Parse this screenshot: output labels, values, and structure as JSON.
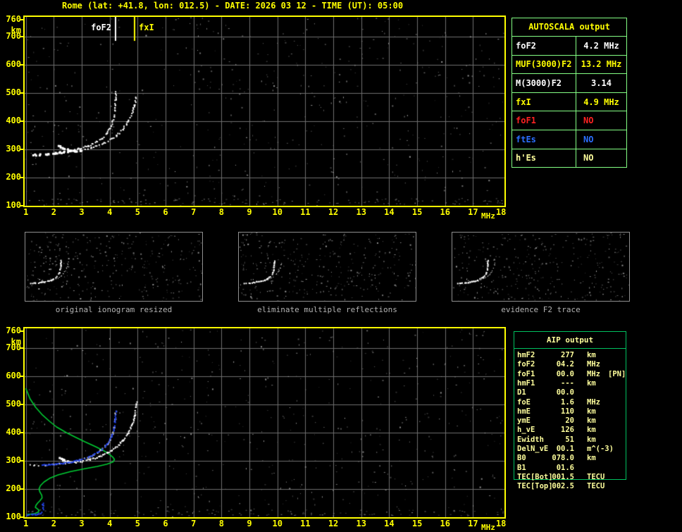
{
  "title": "Rome (lat: +41.8, lon: 012.5) - DATE: 2026 03 12 - TIME (UT): 05:00",
  "colors": {
    "accent_yellow": "#ffff00",
    "pale_yellow": "#ffff9c",
    "white": "#ffffff",
    "red": "#ff2222",
    "blue": "#2b6fff",
    "trace_blue": "#2244ee",
    "profile_green": "#00cc33",
    "table_border_light": "#84ff84",
    "aip_border_green": "#00c060",
    "grid_gray": "#6f6f6f",
    "noise_gray": "#9a9a9a",
    "panel_border": "#8f8f8f",
    "caption_gray": "#b2b2b2"
  },
  "autoscala": {
    "header": "AUTOSCALA output",
    "rows": [
      {
        "label": "foF2",
        "value": "4.2 MHz",
        "color": "#ffffff"
      },
      {
        "label": "MUF(3000)F2",
        "value": "13.2 MHz",
        "color": "#ffff00"
      },
      {
        "label": "M(3000)F2",
        "value": "3.14",
        "color": "#ffffff"
      },
      {
        "label": "fxI",
        "value": "4.9 MHz",
        "color": "#ffff00"
      },
      {
        "label": "foF1",
        "value": "NO",
        "color": "#ff2222"
      },
      {
        "label": "ftEs",
        "value": "NO",
        "color": "#2b6fff"
      },
      {
        "label": "h'Es",
        "value": "NO",
        "color": "#ffff9c"
      }
    ]
  },
  "aip": {
    "header": "AIP output",
    "rows": [
      {
        "label": "hmF2",
        "value": "277",
        "unit": "km",
        "extra": ""
      },
      {
        "label": "foF2",
        "value": "04.2",
        "unit": "MHz",
        "extra": ""
      },
      {
        "label": "foF1",
        "value": "00.0",
        "unit": "MHz",
        "extra": "[PN]"
      },
      {
        "label": "hmF1",
        "value": "---",
        "unit": "km",
        "extra": ""
      },
      {
        "label": "D1",
        "value": "00.0",
        "unit": "",
        "extra": ""
      },
      {
        "label": "foE",
        "value": "1.6",
        "unit": "MHz",
        "extra": ""
      },
      {
        "label": "hmE",
        "value": "110",
        "unit": "km",
        "extra": ""
      },
      {
        "label": "ymE",
        "value": "20",
        "unit": "km",
        "extra": ""
      },
      {
        "label": "h_vE",
        "value": "126",
        "unit": "km",
        "extra": ""
      },
      {
        "label": "Ewidth",
        "value": "51",
        "unit": "km",
        "extra": ""
      },
      {
        "label": "DelN_vE",
        "value": "00.1",
        "unit": "m^(-3)",
        "extra": ""
      },
      {
        "label": "B0",
        "value": "078.0",
        "unit": "km",
        "extra": ""
      },
      {
        "label": "B1",
        "value": "01.6",
        "unit": "",
        "extra": ""
      },
      {
        "label": "TEC[Bot]",
        "value": "001.5",
        "unit": "TECU",
        "extra": ""
      },
      {
        "label": "TEC[Top]",
        "value": "002.5",
        "unit": "TECU",
        "extra": ""
      }
    ]
  },
  "panels": [
    {
      "caption": "original ionogram resized"
    },
    {
      "caption": "eliminate multiple reflections"
    },
    {
      "caption": "evidence F2 trace"
    }
  ],
  "axes": {
    "x_ticks": [
      "1",
      "2",
      "3",
      "4",
      "5",
      "6",
      "7",
      "8",
      "9",
      "10",
      "11",
      "12",
      "13",
      "14",
      "15",
      "16",
      "17",
      "18"
    ],
    "x_tick_values": [
      1,
      2,
      3,
      4,
      5,
      6,
      7,
      8,
      9,
      10,
      11,
      12,
      13,
      14,
      15,
      16,
      17,
      18
    ],
    "x_unit": "MHz",
    "y_ticks": [
      "760",
      "700",
      "600",
      "500",
      "400",
      "300",
      "200",
      "100"
    ],
    "y_tick_values": [
      760,
      700,
      600,
      500,
      400,
      300,
      200,
      100
    ],
    "y_unit": "km"
  },
  "markers": {
    "foF2": {
      "label": "foF2",
      "freq_mhz": 4.2
    },
    "fxI": {
      "label": "fxI",
      "freq_mhz": 4.9
    }
  },
  "chart_data": [
    {
      "type": "scatter",
      "name": "top_ionogram",
      "xlabel": "MHz",
      "ylabel": "km",
      "xlim": [
        1,
        18
      ],
      "ylim": [
        100,
        760
      ],
      "grid": true,
      "markers": [
        {
          "name": "foF2",
          "x": 4.2
        },
        {
          "name": "fxI",
          "x": 4.9
        }
      ],
      "series": [
        {
          "name": "O-mode echo trace",
          "role": "echo-o",
          "color": "#ffffff",
          "points": [
            [
              1.25,
              283
            ],
            [
              1.45,
              284
            ],
            [
              1.7,
              286
            ],
            [
              2.0,
              289
            ],
            [
              2.3,
              293
            ],
            [
              2.6,
              298
            ],
            [
              2.9,
              305
            ],
            [
              3.2,
              314
            ],
            [
              3.45,
              326
            ],
            [
              3.7,
              341
            ],
            [
              3.9,
              361
            ],
            [
              4.05,
              388
            ],
            [
              4.13,
              418
            ],
            [
              4.17,
              452
            ],
            [
              4.19,
              480
            ],
            [
              4.2,
              505
            ]
          ]
        },
        {
          "name": "X-mode echo trace",
          "role": "echo-x",
          "color": "#ffffff",
          "points": [
            [
              2.15,
              316
            ],
            [
              2.3,
              306
            ],
            [
              2.5,
              300
            ],
            [
              2.75,
              297
            ],
            [
              3.0,
              300
            ],
            [
              3.3,
              307
            ],
            [
              3.6,
              317
            ],
            [
              3.9,
              331
            ],
            [
              4.2,
              350
            ],
            [
              4.45,
              374
            ],
            [
              4.65,
              402
            ],
            [
              4.78,
              430
            ],
            [
              4.87,
              462
            ],
            [
              4.92,
              492
            ]
          ]
        }
      ]
    },
    {
      "type": "scatter",
      "name": "bottom_ionogram_with_profile",
      "xlabel": "MHz",
      "ylabel": "km",
      "xlim": [
        1,
        18
      ],
      "ylim": [
        100,
        760
      ],
      "grid": true,
      "series": [
        {
          "name": "O-mode echo trace",
          "role": "echo-o",
          "color": "#e8e8e8",
          "points": [
            [
              1.15,
              286
            ],
            [
              1.45,
              287
            ],
            [
              1.7,
              288
            ],
            [
              2.0,
              290
            ],
            [
              2.3,
              293
            ],
            [
              2.6,
              298
            ],
            [
              2.9,
              305
            ],
            [
              3.2,
              314
            ],
            [
              3.45,
              326
            ],
            [
              3.7,
              341
            ],
            [
              3.9,
              361
            ],
            [
              4.05,
              388
            ],
            [
              4.13,
              418
            ],
            [
              4.17,
              452
            ],
            [
              4.19,
              480
            ]
          ]
        },
        {
          "name": "X-mode echo trace",
          "role": "echo-x",
          "color": "#ffffff",
          "points": [
            [
              2.15,
              316
            ],
            [
              2.3,
              306
            ],
            [
              2.5,
              300
            ],
            [
              2.75,
              297
            ],
            [
              3.0,
              300
            ],
            [
              3.3,
              307
            ],
            [
              3.6,
              317
            ],
            [
              3.9,
              331
            ],
            [
              4.2,
              350
            ],
            [
              4.45,
              374
            ],
            [
              4.65,
              402
            ],
            [
              4.78,
              430
            ],
            [
              4.87,
              462
            ],
            [
              4.92,
              492
            ],
            [
              4.95,
              510
            ]
          ]
        },
        {
          "name": "fitted F2 trace",
          "role": "fit",
          "color": "#2244ee",
          "points": [
            [
              1.55,
              287
            ],
            [
              1.8,
              288
            ],
            [
              2.05,
              290
            ],
            [
              2.3,
              293
            ],
            [
              2.6,
              298
            ],
            [
              2.9,
              305
            ],
            [
              3.2,
              314
            ],
            [
              3.45,
              326
            ],
            [
              3.7,
              341
            ],
            [
              3.9,
              361
            ],
            [
              4.05,
              388
            ],
            [
              4.13,
              418
            ],
            [
              4.18,
              452
            ],
            [
              4.21,
              480
            ]
          ]
        },
        {
          "name": "Es trace",
          "role": "es",
          "color": "#2244ee",
          "points": [
            [
              1.02,
              109
            ],
            [
              1.1,
              110
            ],
            [
              1.2,
              111
            ],
            [
              1.3,
              112
            ],
            [
              1.4,
              113
            ],
            [
              1.5,
              115
            ],
            [
              1.56,
              120
            ],
            [
              1.6,
              128
            ],
            [
              1.6,
              138
            ],
            [
              1.57,
              147
            ],
            [
              1.63,
              155
            ]
          ]
        },
        {
          "name": "plasma frequency profile",
          "role": "profile",
          "color": "#00cc33",
          "points": [
            [
              1.0,
              557
            ],
            [
              1.15,
              520
            ],
            [
              1.35,
              490
            ],
            [
              1.6,
              462
            ],
            [
              1.85,
              440
            ],
            [
              2.1,
              420
            ],
            [
              2.45,
              400
            ],
            [
              2.75,
              385
            ],
            [
              3.1,
              368
            ],
            [
              3.5,
              350
            ],
            [
              3.8,
              335
            ],
            [
              4.0,
              322
            ],
            [
              4.12,
              312
            ],
            [
              4.17,
              305
            ],
            [
              4.12,
              296
            ],
            [
              3.9,
              288
            ],
            [
              3.55,
              280
            ],
            [
              3.1,
              272
            ],
            [
              2.6,
              262
            ],
            [
              2.15,
              250
            ],
            [
              1.85,
              238
            ],
            [
              1.65,
              225
            ],
            [
              1.52,
              212
            ],
            [
              1.47,
              200
            ],
            [
              1.5,
              190
            ],
            [
              1.57,
              178
            ],
            [
              1.58,
              168
            ],
            [
              1.5,
              158
            ],
            [
              1.42,
              150
            ],
            [
              1.36,
              142
            ],
            [
              1.34,
              135
            ],
            [
              1.42,
              129
            ],
            [
              1.47,
              124
            ],
            [
              1.44,
              118
            ],
            [
              1.33,
              113
            ],
            [
              1.18,
              111
            ],
            [
              1.04,
              110
            ]
          ]
        }
      ]
    }
  ]
}
